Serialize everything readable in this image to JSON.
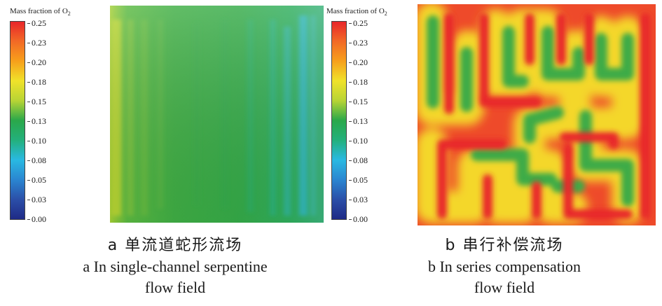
{
  "legend": {
    "title": "Mass fraction of O",
    "title_sub": "2",
    "ticks": [
      "0.25",
      "0.23",
      "0.20",
      "0.18",
      "0.15",
      "0.13",
      "0.10",
      "0.08",
      "0.05",
      "0.03",
      "0.00"
    ]
  },
  "panels": [
    {
      "caption_cn": "a  单流道蛇形流场",
      "caption_en_line1": "a  In single-channel serpentine",
      "caption_en_line2": "flow field"
    },
    {
      "caption_cn": "b  串行补偿流场",
      "caption_en_line1": "b In series compensation",
      "caption_en_line2": "flow field"
    }
  ],
  "colors": {
    "scale_top": "#e8262a",
    "scale_mid": "#2aa84a",
    "scale_bottom": "#1f2a86",
    "panel_a_base": "#3dab47",
    "panel_b_base": "#ee5a2a"
  }
}
